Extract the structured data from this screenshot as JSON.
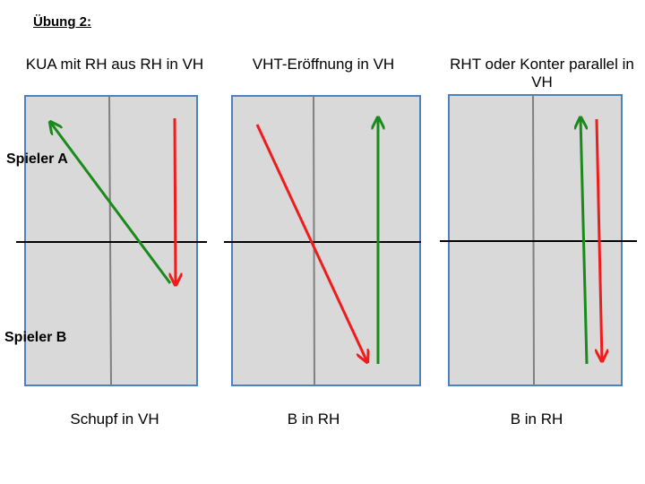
{
  "heading": "Übung 2:",
  "players": {
    "a": "Spieler A",
    "b": "Spieler B"
  },
  "panels": [
    {
      "title": "KUA mit RH aus RH in VH",
      "caption": "Schupf in VH",
      "arrows": [
        {
          "color": "#1a8a1a",
          "from": "bottom-right",
          "to": "top-left"
        },
        {
          "color": "#ee1c1c",
          "from": "top-right",
          "to": "bottom-right"
        }
      ]
    },
    {
      "title": "VHT-Eröffnung in VH",
      "caption": "B in RH",
      "arrows": [
        {
          "color": "#ee1c1c",
          "from": "top-left",
          "to": "bottom-right"
        },
        {
          "color": "#1a8a1a",
          "from": "bottom-right",
          "to": "top-right"
        }
      ]
    },
    {
      "title": "RHT oder Konter parallel in VH",
      "caption": "B in RH",
      "arrows": [
        {
          "color": "#1a8a1a",
          "from": "bottom-right",
          "to": "top-right"
        },
        {
          "color": "#ee1c1c",
          "from": "top-right",
          "to": "bottom-right"
        }
      ]
    }
  ],
  "colors": {
    "table_fill": "#d9d9d9",
    "table_border": "#4f81bd",
    "center_line": "#808080",
    "net": "#000000",
    "green_arrow": "#1a8a1a",
    "red_arrow": "#ee1c1c"
  }
}
